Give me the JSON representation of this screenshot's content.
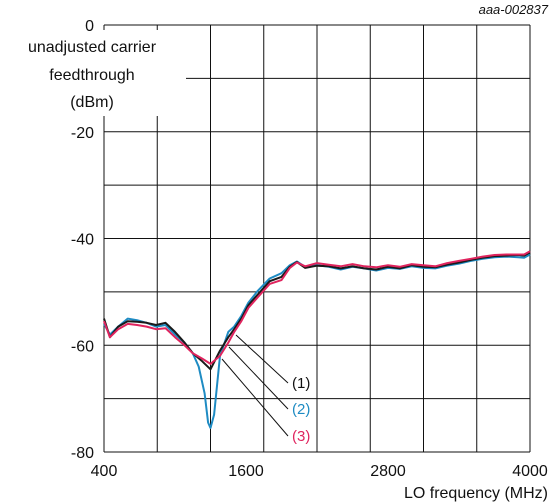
{
  "figure_id": "aaa-002837",
  "chart_data": {
    "type": "line",
    "ylabel_lines": [
      "unadjusted carrier",
      "feedthrough",
      "(dBm)"
    ],
    "xlabel": "LO frequency (MHz)",
    "xlim": [
      400,
      4000
    ],
    "ylim": [
      -80,
      0
    ],
    "x_ticks": [
      "400",
      "1600",
      "2800",
      "4000"
    ],
    "y_ticks": [
      "0",
      "-20",
      "-40",
      "-60",
      "-80"
    ],
    "grid": true,
    "colors": {
      "s1": "#1a1a1a",
      "s2": "#1e8bc3",
      "s3": "#e0245e"
    },
    "series": [
      {
        "name": "(1)",
        "color_key": "s1",
        "x": [
          400,
          450,
          520,
          600,
          680,
          760,
          840,
          920,
          1000,
          1080,
          1150,
          1230,
          1300,
          1380,
          1450,
          1500,
          1560,
          1620,
          1700,
          1800,
          1900,
          1970,
          2030,
          2100,
          2200,
          2300,
          2400,
          2500,
          2600,
          2700,
          2800,
          2900,
          3000,
          3100,
          3200,
          3300,
          3400,
          3500,
          3600,
          3700,
          3800,
          3900,
          3950,
          4000
        ],
        "y": [
          -55,
          -58.5,
          -56.5,
          -55.5,
          -55.6,
          -55.8,
          -56.2,
          -55.8,
          -57.5,
          -59.5,
          -61.5,
          -63,
          -64.5,
          -61,
          -58.5,
          -57,
          -55,
          -52.5,
          -50.5,
          -48,
          -47.2,
          -45.3,
          -44.4,
          -45.5,
          -45.1,
          -45.2,
          -45.6,
          -45.2,
          -45.6,
          -45.8,
          -45.3,
          -45.6,
          -45,
          -45.3,
          -45.4,
          -44.9,
          -44.5,
          -44,
          -43.6,
          -43.3,
          -43.2,
          -43.1,
          -43.2,
          -42.6
        ]
      },
      {
        "name": "(2)",
        "color_key": "s2",
        "x": [
          400,
          450,
          520,
          600,
          680,
          760,
          840,
          920,
          1000,
          1080,
          1150,
          1200,
          1250,
          1280,
          1300,
          1330,
          1380,
          1450,
          1500,
          1560,
          1620,
          1700,
          1800,
          1900,
          1970,
          2030,
          2100,
          2200,
          2300,
          2400,
          2500,
          2600,
          2700,
          2800,
          2900,
          3000,
          3100,
          3200,
          3300,
          3400,
          3500,
          3600,
          3700,
          3800,
          3900,
          3950,
          4000
        ],
        "y": [
          -56,
          -58,
          -56.5,
          -55,
          -55.3,
          -55.8,
          -56.5,
          -56.2,
          -58,
          -59.5,
          -61.5,
          -64,
          -69,
          -74.5,
          -75.5,
          -73,
          -62,
          -57.5,
          -56.5,
          -54.5,
          -52,
          -49.8,
          -47.5,
          -46.5,
          -45,
          -44.3,
          -45.3,
          -45,
          -45.3,
          -45.8,
          -45.3,
          -45.6,
          -46,
          -45.5,
          -45.7,
          -45.2,
          -45.5,
          -45.6,
          -45.1,
          -44.7,
          -44.2,
          -43.8,
          -43.5,
          -43.4,
          -43.5,
          -43.6,
          -43
        ]
      },
      {
        "name": "(3)",
        "color_key": "s3",
        "x": [
          400,
          450,
          520,
          600,
          680,
          760,
          840,
          920,
          1000,
          1080,
          1150,
          1230,
          1300,
          1380,
          1450,
          1500,
          1560,
          1620,
          1700,
          1800,
          1900,
          1970,
          2030,
          2100,
          2200,
          2300,
          2400,
          2500,
          2600,
          2700,
          2800,
          2900,
          3000,
          3100,
          3200,
          3300,
          3400,
          3500,
          3600,
          3700,
          3800,
          3900,
          3950,
          4000
        ],
        "y": [
          -55.5,
          -58.5,
          -57,
          -56,
          -56.2,
          -56.5,
          -57,
          -56.8,
          -58.5,
          -60,
          -61.5,
          -62.5,
          -63.5,
          -62,
          -59.5,
          -57.5,
          -55.5,
          -53,
          -51,
          -48.5,
          -47.8,
          -45.5,
          -44.5,
          -45.2,
          -44.6,
          -44.9,
          -45.2,
          -44.8,
          -45.2,
          -45.4,
          -45,
          -45.3,
          -44.8,
          -45,
          -45.2,
          -44.6,
          -44.2,
          -43.8,
          -43.4,
          -43.1,
          -43,
          -43,
          -43,
          -42.4
        ]
      }
    ]
  }
}
